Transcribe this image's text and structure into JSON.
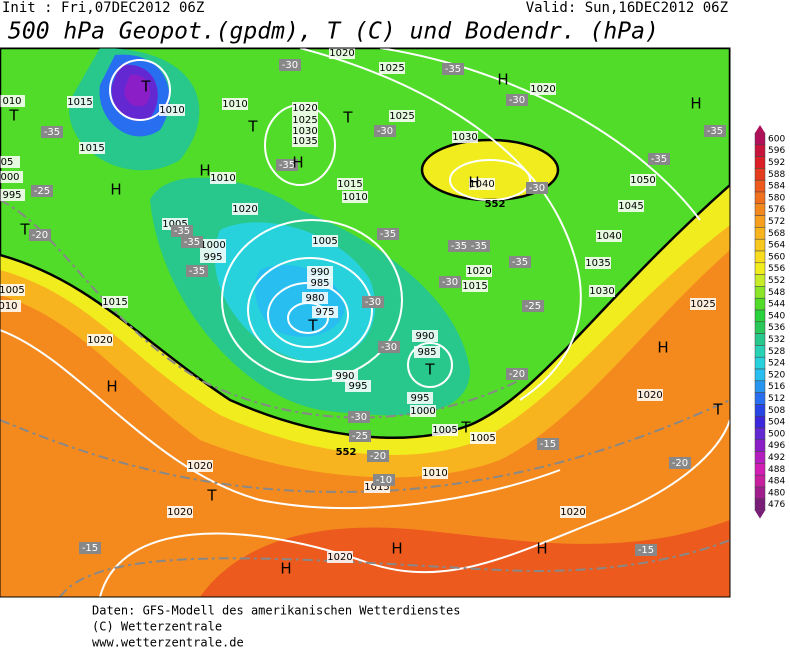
{
  "header": {
    "init": "Init : Fri,07DEC2012 06Z",
    "valid": "Valid: Sun,16DEC2012 06Z",
    "title": "500 hPa Geopot.(gpdm), T (C) und Bodendr. (hPa)"
  },
  "map": {
    "pressure_labels": [
      "1015",
      "1010",
      "1010",
      "1020",
      "1025",
      "1030",
      "1035",
      "1015",
      "1010",
      "1020",
      "1015",
      "1010",
      "1005",
      "1000",
      "995",
      "1005",
      "990",
      "985",
      "980",
      "975",
      "990",
      "995",
      "990",
      "985",
      "995",
      "1000",
      "1005",
      "1005",
      "1010",
      "1015",
      "1020",
      "1020",
      "1020",
      "1020",
      "1015",
      "1005",
      "010",
      "995",
      "000",
      "05",
      "010",
      "1020",
      "1025",
      "1025",
      "1030",
      "1040",
      "1020",
      "1050",
      "1045",
      "1040",
      "1035",
      "1030",
      "1025",
      "1020",
      "1020",
      "1020",
      "1015"
    ],
    "temperature_labels": [
      "-35",
      "-25",
      "-20",
      "-35",
      "-35",
      "-35",
      "-35",
      "-30",
      "-30",
      "-35",
      "-35",
      "-35",
      "-35",
      "-30",
      "-30",
      "-30",
      "-30",
      "-25",
      "-30",
      "-30",
      "-35",
      "-35",
      "-25",
      "-20",
      "-15",
      "-20",
      "-15",
      "-10",
      "-15",
      "-20",
      "-35"
    ],
    "centers": [
      "T",
      "T",
      "H",
      "T",
      "H",
      "T",
      "H",
      "T",
      "T",
      "T",
      "H",
      "H",
      "H",
      "H",
      "H",
      "T",
      "T",
      "H",
      "H",
      "H",
      "T"
    ],
    "contour_labels": [
      "552",
      "552"
    ]
  },
  "colorbar": {
    "levels": [
      600,
      596,
      592,
      588,
      584,
      580,
      576,
      572,
      568,
      564,
      560,
      556,
      552,
      548,
      544,
      540,
      536,
      532,
      528,
      524,
      520,
      516,
      512,
      508,
      504,
      500,
      496,
      492,
      488,
      484,
      480,
      476
    ],
    "colors": [
      "#b0105a",
      "#c8143c",
      "#dc1e28",
      "#e63c1e",
      "#ec5a1e",
      "#f0701e",
      "#f48a1e",
      "#f6a01e",
      "#f8b41e",
      "#f8c81e",
      "#f8dc1e",
      "#f0ec1e",
      "#c8ec28",
      "#8ce628",
      "#50dc28",
      "#28d23c",
      "#28c85a",
      "#28c88c",
      "#28d2b4",
      "#28d2dc",
      "#28bef0",
      "#2896f0",
      "#286ef0",
      "#2846e6",
      "#3c28dc",
      "#6428d2",
      "#8c1ec8",
      "#b41ebe",
      "#d21eb4",
      "#c81ea0",
      "#a01e8c",
      "#781e78"
    ]
  },
  "footer": {
    "line1": "Daten: GFS-Modell des amerikanischen Wetterdienstes",
    "line2": "(C) Wetterzentrale",
    "line3": "www.wetterzentrale.de"
  }
}
